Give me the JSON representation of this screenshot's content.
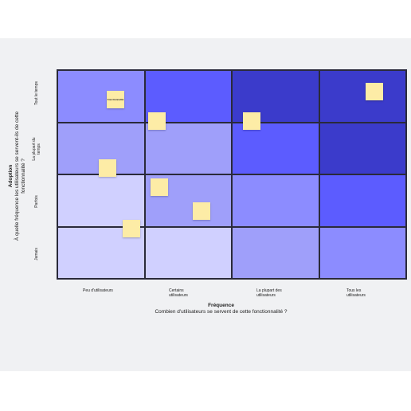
{
  "colors": {
    "lightest": "#d0d0ff",
    "light": "#b8b8ff",
    "medium_light": "#9f9ffa",
    "medium": "#8c8cff",
    "strong": "#5c5cff",
    "dark": "#3b3bcb"
  },
  "grid": {
    "rows": [
      [
        "#8c8cff",
        "#5c5cff",
        "#3b3bcb",
        "#3b3bcb"
      ],
      [
        "#9f9ffa",
        "#9f9ffa",
        "#5c5cff",
        "#3b3bcb"
      ],
      [
        "#d0d0ff",
        "#9f9ffa",
        "#8c8cff",
        "#5c5cff"
      ],
      [
        "#d0d0ff",
        "#d0d0ff",
        "#9f9ffa",
        "#8c8cff"
      ]
    ]
  },
  "y_axis": {
    "title_bold": "Adoption",
    "title_sub": "À quelle fréquence les utilisateurs se servent-ils de cette fonctionnalité ?",
    "levels": [
      "Tout le temps",
      "La plupart du temps",
      "Parfois",
      "Jamais"
    ]
  },
  "x_axis": {
    "title_bold": "Fréquence",
    "title_sub": "Combien d'utilisateurs se servent de cette fonctionnalité ?",
    "levels": [
      "Peu d'utilisateurs",
      "Certains utilisateurs",
      "La plupart des utilisateurs",
      "Tous les utilisateurs"
    ]
  },
  "notes": [
    {
      "label": "Fonctionnalité"
    },
    {
      "label": ""
    },
    {
      "label": ""
    },
    {
      "label": ""
    },
    {
      "label": ""
    },
    {
      "label": ""
    },
    {
      "label": ""
    },
    {
      "label": ""
    }
  ]
}
